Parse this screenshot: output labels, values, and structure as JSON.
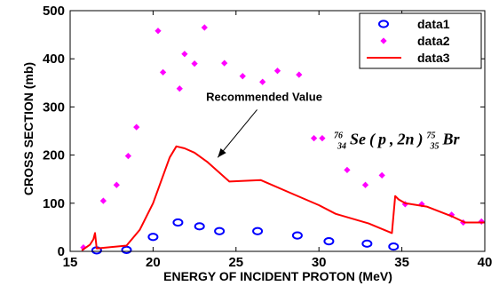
{
  "chart_data": {
    "type": "scatter",
    "xlabel": "ENERGY OF INCIDENT PROTON (MeV)",
    "ylabel": "CROSS SECTION (mb)",
    "xlim": [
      15,
      40
    ],
    "ylim": [
      0,
      500
    ],
    "xticks": [
      15,
      20,
      25,
      30,
      35,
      40
    ],
    "yticks": [
      0,
      100,
      200,
      300,
      400,
      500
    ],
    "grid": false,
    "legend_position": "top-right",
    "series": [
      {
        "name": "data1",
        "marker": "circle",
        "color": "#0000ff",
        "x": [
          16.6,
          18.4,
          20.0,
          21.5,
          22.8,
          24.0,
          26.3,
          28.7,
          30.6,
          32.9,
          34.5
        ],
        "y": [
          2,
          3,
          30,
          60,
          52,
          42,
          42,
          33,
          21,
          16,
          10
        ]
      },
      {
        "name": "data2",
        "marker": "diamond",
        "color": "#ff00ff",
        "x": [
          15.8,
          17.0,
          17.8,
          18.5,
          19.0,
          20.3,
          20.6,
          21.6,
          21.9,
          22.5,
          23.1,
          24.3,
          25.4,
          26.6,
          27.5,
          28.8,
          29.7,
          30.2,
          31.7,
          32.8,
          33.8,
          35.2,
          36.2,
          38.0,
          38.7,
          39.8
        ],
        "y": [
          8,
          105,
          138,
          198,
          258,
          458,
          372,
          338,
          410,
          390,
          465,
          391,
          364,
          352,
          375,
          367,
          235,
          235,
          169,
          138,
          158,
          98,
          98,
          76,
          60,
          62
        ]
      },
      {
        "name": "data3",
        "marker": "line",
        "color": "#ff0000",
        "x": [
          15.7,
          16.2,
          16.4,
          16.5,
          16.6,
          18.4,
          19.2,
          20.0,
          21.0,
          21.4,
          21.9,
          22.5,
          23.3,
          24.6,
          26.5,
          28.5,
          30.0,
          31.0,
          33.0,
          34.4,
          34.6,
          34.8,
          35.2,
          36.5,
          38.0,
          38.8,
          40.0
        ],
        "y": [
          2,
          14,
          25,
          38,
          6,
          12,
          45,
          100,
          195,
          218,
          214,
          205,
          185,
          145,
          148,
          118,
          96,
          78,
          58,
          38,
          115,
          108,
          100,
          93,
          73,
          60,
          60
        ]
      }
    ],
    "annotations": [
      {
        "text": "Recommended Value",
        "x": 26.7,
        "y": 322,
        "arrow_to": [
          23.9,
          195
        ]
      }
    ],
    "reaction_label": {
      "pre_sup": "76",
      "pre_sub": "34",
      "target": "Se",
      "open": "(",
      "projectile": "p",
      "comma": ",",
      "ejectile": "2n",
      "close": ")",
      "post_sup": "75",
      "post_sub": "35",
      "product": "Br",
      "x": 30.9,
      "y": 222
    }
  }
}
